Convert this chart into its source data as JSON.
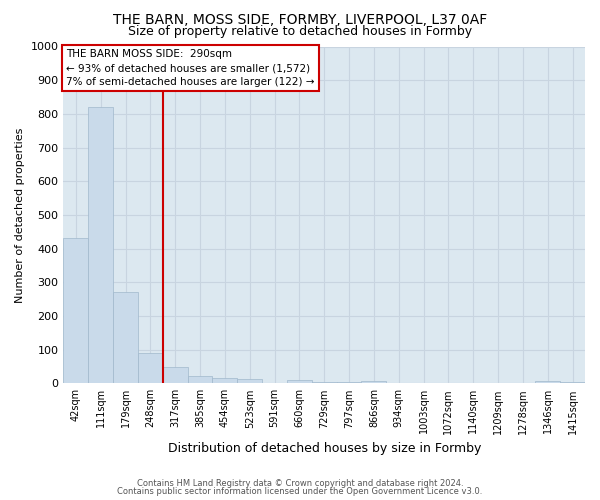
{
  "title1": "THE BARN, MOSS SIDE, FORMBY, LIVERPOOL, L37 0AF",
  "title2": "Size of property relative to detached houses in Formby",
  "xlabel": "Distribution of detached houses by size in Formby",
  "ylabel": "Number of detached properties",
  "categories": [
    "42sqm",
    "111sqm",
    "179sqm",
    "248sqm",
    "317sqm",
    "385sqm",
    "454sqm",
    "523sqm",
    "591sqm",
    "660sqm",
    "729sqm",
    "797sqm",
    "866sqm",
    "934sqm",
    "1003sqm",
    "1072sqm",
    "1140sqm",
    "1209sqm",
    "1278sqm",
    "1346sqm",
    "1415sqm"
  ],
  "values": [
    430,
    820,
    270,
    90,
    48,
    22,
    17,
    12,
    1,
    11,
    5,
    5,
    7,
    1,
    0,
    0,
    0,
    0,
    0,
    8,
    5
  ],
  "bar_color": "#c9daea",
  "bar_edge_color": "#a0b8cc",
  "vline_color": "#cc0000",
  "annotation_line1": "THE BARN MOSS SIDE:  290sqm",
  "annotation_line2": "← 93% of detached houses are smaller (1,572)",
  "annotation_line3": "7% of semi-detached houses are larger (122) →",
  "annotation_box_color": "#ffffff",
  "annotation_box_edge": "#cc0000",
  "footer1": "Contains HM Land Registry data © Crown copyright and database right 2024.",
  "footer2": "Contains public sector information licensed under the Open Government Licence v3.0.",
  "ylim": [
    0,
    1000
  ],
  "yticks": [
    0,
    100,
    200,
    300,
    400,
    500,
    600,
    700,
    800,
    900,
    1000
  ],
  "grid_color": "#c8d4e0",
  "bg_color": "#dce8f0",
  "title_fontsize": 10,
  "subtitle_fontsize": 9
}
